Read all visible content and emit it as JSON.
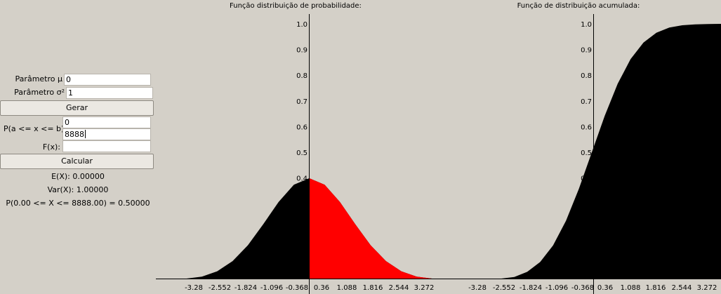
{
  "form": {
    "mu_label": "Parâmetro μ",
    "mu_value": "0",
    "sigma2_label": "Parâmetro σ²",
    "sigma2_value": "1",
    "generate_label": "Gerar",
    "prob_label": "P(a <= x <= b):",
    "a_value": "0",
    "b_value": "8888",
    "fx_label": "F(x):",
    "fx_value": "",
    "calculate_label": "Calcular"
  },
  "results": {
    "expected": "E(X): 0.00000",
    "variance": "Var(X): 1.00000",
    "probability": "P(0.00 <= X <= 8888.00) = 0.50000"
  },
  "colors": {
    "background": "#d4d0c8",
    "plot_fill": "#000000",
    "highlight_fill": "#ff0000"
  },
  "chart_data": [
    {
      "type": "area",
      "title": "Função distribuição de probabilidade:",
      "xlabel": "",
      "ylabel": "",
      "xlim": [
        -3.64,
        3.64
      ],
      "ylim": [
        0,
        1.0
      ],
      "xticks": [
        "-3.28",
        "-2.552",
        "-1.824",
        "-1.096",
        "-0.368",
        "0.36",
        "1.088",
        "1.816",
        "2.544",
        "3.272"
      ],
      "yticks": [
        "0.4",
        "0.5",
        "0.6",
        "0.7",
        "0.8",
        "0.9",
        "1.0"
      ],
      "series": [
        {
          "x": [
            -3.64,
            -3.276,
            -2.912,
            -2.548,
            -2.184,
            -1.82,
            -1.456,
            -1.092,
            -0.728,
            -0.364,
            0,
            0.364,
            0.728,
            1.092,
            1.456,
            1.82,
            2.184,
            2.548,
            2.912,
            3.276,
            3.64
          ],
          "y": [
            0.0005,
            0.0019,
            0.0058,
            0.0155,
            0.0367,
            0.0762,
            0.1381,
            0.2198,
            0.3062,
            0.3734,
            0.3989,
            0.3734,
            0.3062,
            0.2198,
            0.1381,
            0.0762,
            0.0367,
            0.0155,
            0.0058,
            0.0019,
            0.0005
          ],
          "color": "#000000"
        }
      ],
      "highlight": {
        "from": 0,
        "to": 8888,
        "color": "#ff0000"
      },
      "grid": false
    },
    {
      "type": "area",
      "title": "Função de distribuição acumulada:",
      "xlabel": "",
      "ylabel": "",
      "xlim": [
        -3.64,
        3.64
      ],
      "ylim": [
        0,
        1.0
      ],
      "xticks": [
        "-3.28",
        "-2.552",
        "-1.824",
        "-1.096",
        "-0.368",
        "0.36",
        "1.088",
        "1.816",
        "2.544",
        "3.272"
      ],
      "yticks": [
        "0.4",
        "0.5",
        "0.6",
        "0.7",
        "0.8",
        "0.9",
        "1.0"
      ],
      "series": [
        {
          "x": [
            -3.64,
            -3.276,
            -2.912,
            -2.548,
            -2.184,
            -1.82,
            -1.456,
            -1.092,
            -0.728,
            -0.364,
            0,
            0.364,
            0.728,
            1.092,
            1.456,
            1.82,
            2.184,
            2.548,
            2.912,
            3.276,
            3.64
          ],
          "y": [
            0.0001,
            0.0005,
            0.0018,
            0.0054,
            0.0145,
            0.0344,
            0.0727,
            0.1374,
            0.2333,
            0.3579,
            0.5,
            0.6421,
            0.7667,
            0.8626,
            0.9273,
            0.9656,
            0.9855,
            0.9946,
            0.9982,
            0.9995,
            0.9999
          ],
          "color": "#000000"
        }
      ],
      "grid": false
    }
  ]
}
